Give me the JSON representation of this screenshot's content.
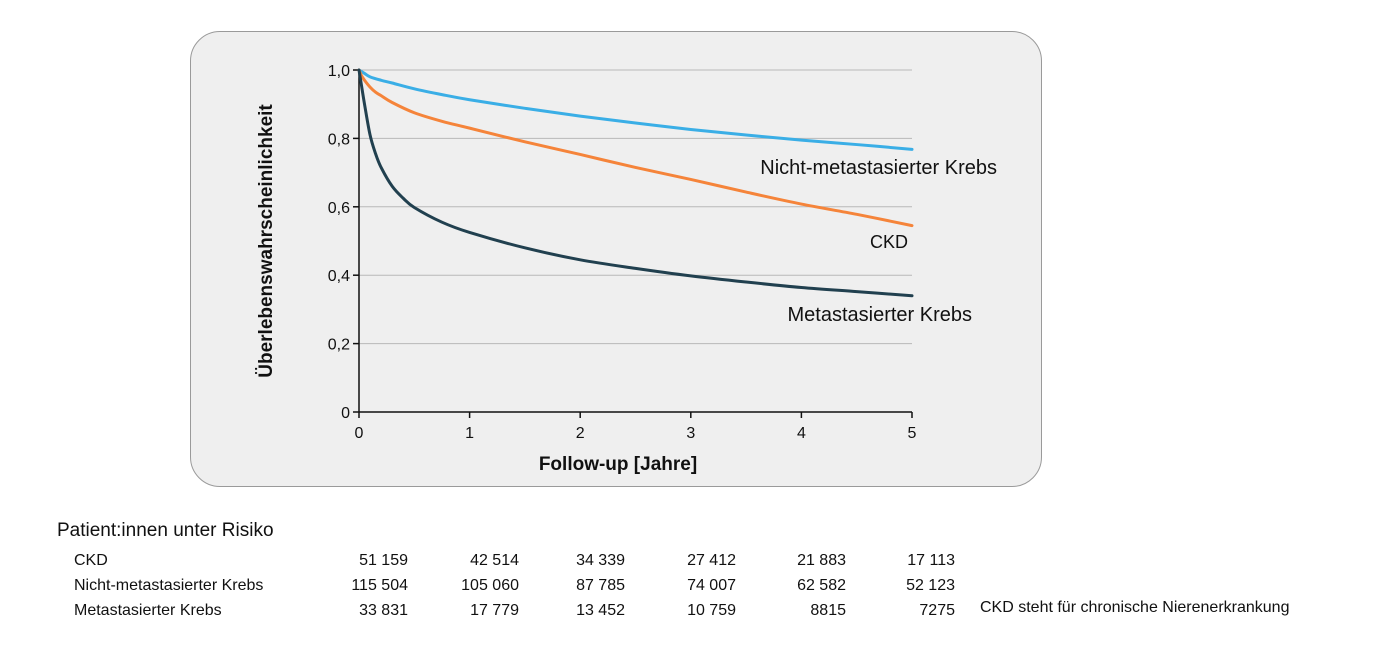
{
  "chart_data": {
    "type": "line",
    "xlabel": "Follow-up [Jahre]",
    "ylabel": "Überlebenswahrscheinlichkeit",
    "xlim": [
      0,
      5
    ],
    "ylim": [
      0,
      1.0
    ],
    "x_ticks": [
      0,
      1,
      2,
      3,
      4,
      5
    ],
    "x_tick_labels": [
      "0",
      "1",
      "2",
      "3",
      "4",
      "5"
    ],
    "y_ticks": [
      0,
      0.2,
      0.4,
      0.6,
      0.8,
      1.0
    ],
    "y_tick_labels": [
      "0",
      "0,2",
      "0,4",
      "0,6",
      "0,8",
      "1,0"
    ],
    "grid": "horizontal",
    "series": [
      {
        "name": "Nicht-metastasierter Krebs",
        "color": "#3aaee6",
        "x": [
          0,
          0.05,
          0.1,
          0.2,
          0.3,
          0.5,
          0.75,
          1,
          1.5,
          2,
          2.5,
          3,
          3.5,
          4,
          4.5,
          5
        ],
        "y": [
          1.0,
          0.99,
          0.98,
          0.97,
          0.962,
          0.945,
          0.928,
          0.913,
          0.888,
          0.865,
          0.845,
          0.826,
          0.81,
          0.795,
          0.782,
          0.768
        ]
      },
      {
        "name": "CKD",
        "color": "#f5843a",
        "x": [
          0,
          0.02,
          0.05,
          0.1,
          0.15,
          0.2,
          0.3,
          0.5,
          0.75,
          1,
          1.5,
          2,
          2.5,
          3,
          3.5,
          4,
          4.5,
          5
        ],
        "y": [
          1.0,
          0.985,
          0.97,
          0.95,
          0.935,
          0.925,
          0.905,
          0.875,
          0.85,
          0.83,
          0.79,
          0.753,
          0.715,
          0.68,
          0.643,
          0.608,
          0.578,
          0.545
        ]
      },
      {
        "name": "Metastasierter Krebs",
        "color": "#21404f",
        "x": [
          0,
          0.02,
          0.05,
          0.1,
          0.15,
          0.2,
          0.3,
          0.4,
          0.5,
          0.75,
          1,
          1.5,
          2,
          2.5,
          3,
          3.5,
          4,
          4.5,
          5
        ],
        "y": [
          1.0,
          0.96,
          0.9,
          0.81,
          0.755,
          0.715,
          0.66,
          0.625,
          0.598,
          0.555,
          0.525,
          0.48,
          0.445,
          0.42,
          0.398,
          0.38,
          0.364,
          0.352,
          0.34
        ]
      }
    ]
  },
  "series_labels": {
    "non_metastatic": "Nicht-metastasierter Krebs",
    "ckd": "CKD",
    "metastatic": "Metastasierter Krebs"
  },
  "risk_table": {
    "title": "Patient:innen unter Risiko",
    "rows": [
      {
        "name": "CKD",
        "values": [
          "51 159",
          "42 514",
          "34 339",
          "27 412",
          "21 883",
          "17 113"
        ]
      },
      {
        "name": "Nicht-metastasierter Krebs",
        "values": [
          "115 504",
          "105 060",
          "87 785",
          "74 007",
          "62 582",
          "52 123"
        ]
      },
      {
        "name": "Metastasierter Krebs",
        "values": [
          "33 831",
          "17 779",
          "13 452",
          "10 759",
          "8815",
          "7275"
        ]
      }
    ]
  },
  "footnote": "CKD steht für chronische Nierenerkrankung"
}
